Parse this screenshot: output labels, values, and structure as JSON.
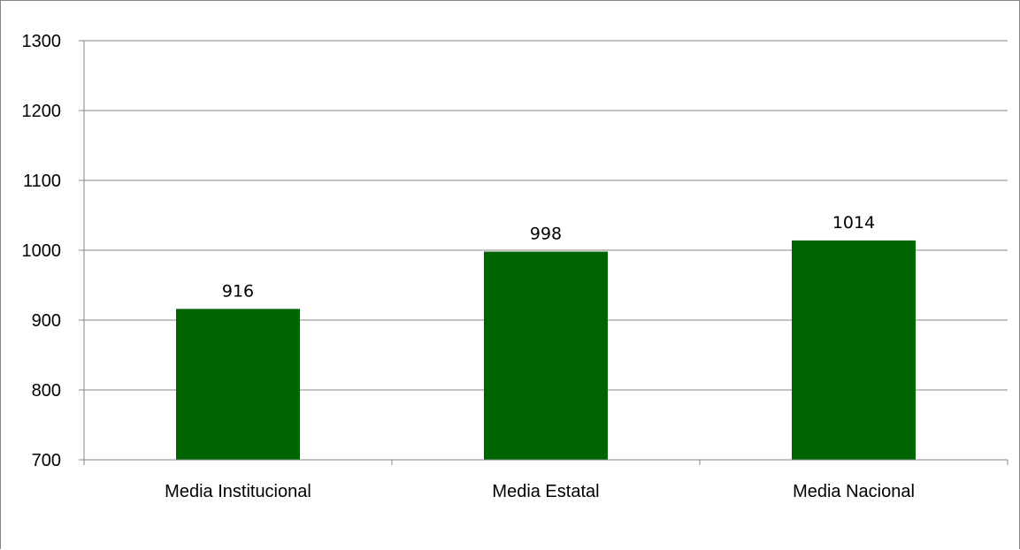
{
  "chart_data": {
    "type": "bar",
    "categories": [
      "Media Institucional",
      "Media Estatal",
      "Media Nacional"
    ],
    "values": [
      916,
      998,
      1014
    ],
    "data_labels": [
      "916",
      "998",
      "1014"
    ],
    "yticks": [
      "700",
      "800",
      "900",
      "1000",
      "1100",
      "1200",
      "1300"
    ],
    "ylim": [
      700,
      1300
    ],
    "title": "",
    "xlabel": "",
    "ylabel": "",
    "grid": true,
    "legend": "none",
    "bar_color": "#006400",
    "gridline_color": "#868686"
  }
}
